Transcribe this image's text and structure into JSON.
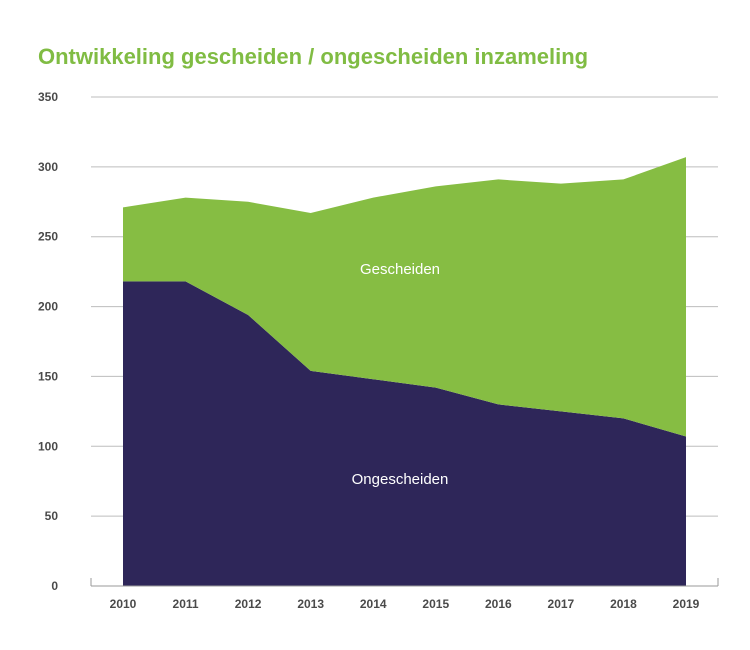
{
  "chart_data": {
    "type": "area",
    "stacked": true,
    "title": "Ontwikkeling gescheiden / ongescheiden inzameling",
    "xlabel": "",
    "ylabel": "",
    "categories": [
      "2010",
      "2011",
      "2012",
      "2013",
      "2014",
      "2015",
      "2016",
      "2017",
      "2018",
      "2019"
    ],
    "series": [
      {
        "name": "Ongescheiden",
        "color": "#2e2659",
        "values": [
          218,
          218,
          194,
          154,
          148,
          142,
          130,
          125,
          120,
          107
        ]
      },
      {
        "name": "Gescheiden",
        "color": "#86bd43",
        "values": [
          53,
          60,
          81,
          113,
          130,
          144,
          161,
          163,
          171,
          200
        ]
      }
    ],
    "yticks": [
      "0",
      "50",
      "100",
      "150",
      "200",
      "250",
      "300",
      "350"
    ],
    "ylim": [
      0,
      350
    ],
    "grid": true,
    "legend": "inline labels"
  }
}
